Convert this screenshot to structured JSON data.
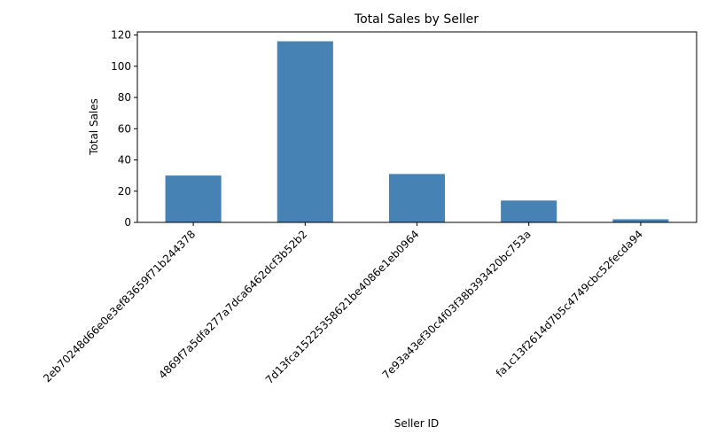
{
  "chart_data": {
    "type": "bar",
    "title": "Total Sales by Seller",
    "xlabel": "Seller ID",
    "ylabel": "Total Sales",
    "categories": [
      "2eb70248d66e0e3ef83659f71b244378",
      "4869f7a5dfa277a7dca6462dcf3b52b2",
      "7d13fca15225358621be4086e1eb0964",
      "7e93a43ef30c4f03f38b393420bc753a",
      "fa1c13f2614d7b5c4749cbc52fecda94"
    ],
    "values": [
      30,
      116,
      31,
      14,
      2
    ],
    "ylim": [
      0,
      122
    ],
    "yticks": [
      0,
      20,
      40,
      60,
      80,
      100,
      120
    ],
    "bar_color": "#4682b4",
    "grid": false,
    "legend": "none"
  }
}
